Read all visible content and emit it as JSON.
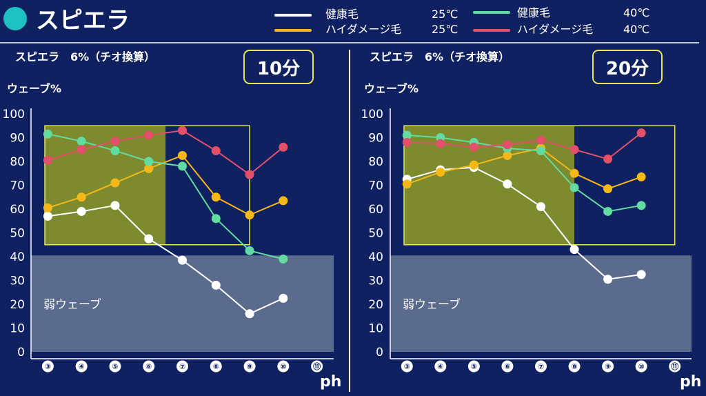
{
  "header": {
    "title": "スピエラ"
  },
  "legend": [
    {
      "name": "健康毛",
      "temp": "25℃",
      "color": "#ffffff"
    },
    {
      "name": "ハイダメージ毛",
      "temp": "25℃",
      "color": "#f5b817"
    },
    {
      "name": "健康毛",
      "temp": "40℃",
      "color": "#62dba0"
    },
    {
      "name": "ハイダメージ毛",
      "temp": "40℃",
      "color": "#e2506a"
    }
  ],
  "colors": {
    "background": "#0f2160",
    "optimal_zone_border": "#e6e85a",
    "optimal_zone_fill": "#7d8a2e",
    "weak_zone_fill": "#5a6b8e"
  },
  "chart_data": [
    {
      "type": "line",
      "title": "10分",
      "subtitle": "スピエラ　6%（チオ換算）",
      "ylabel": "ウェーブ%",
      "xlabel": "ph",
      "x_tick_labels": [
        "③",
        "④",
        "⑤",
        "⑥",
        "⑦",
        "⑧",
        "⑨",
        "⑩",
        "⑪"
      ],
      "x": [
        3,
        4,
        5,
        6,
        7,
        8,
        9,
        10
      ],
      "xlim": [
        2.5,
        11.5
      ],
      "ylim": [
        0,
        100
      ],
      "yticks": [
        0,
        10,
        20,
        30,
        40,
        50,
        60,
        70,
        80,
        90,
        100
      ],
      "grid": false,
      "series": [
        {
          "name": "健康毛 25℃",
          "color": "#ffffff",
          "values": [
            57,
            59,
            61.5,
            47.5,
            38.5,
            28,
            16,
            22.5
          ]
        },
        {
          "name": "ハイダメージ毛 25℃",
          "color": "#f5b817",
          "values": [
            60.5,
            65,
            71,
            77,
            82.5,
            65,
            57.5,
            63.5
          ]
        },
        {
          "name": "健康毛 40℃",
          "color": "#62dba0",
          "values": [
            91.5,
            88.5,
            84.5,
            80,
            78,
            56,
            42.5,
            39
          ]
        },
        {
          "name": "ハイダメージ毛 40℃",
          "color": "#e2506a",
          "values": [
            80.5,
            85,
            88.5,
            91,
            93,
            84.5,
            74.5,
            86
          ]
        }
      ],
      "optimal_zone": {
        "x": [
          2.5,
          9
        ],
        "y": [
          45,
          95
        ]
      },
      "optimal_zone_filled": {
        "x": [
          2.5,
          6.5
        ],
        "y": [
          45,
          95
        ]
      },
      "weak_zone": {
        "x": [
          2.5,
          11.5
        ],
        "y": [
          0,
          40.5
        ],
        "label": "弱ウェーブ"
      }
    },
    {
      "type": "line",
      "title": "20分",
      "subtitle": "スピエラ　6%（チオ換算）",
      "ylabel": "ウェーブ%",
      "xlabel": "ph",
      "x_tick_labels": [
        "③",
        "④",
        "⑤",
        "⑥",
        "⑦",
        "⑧",
        "⑨",
        "⑩",
        "⑪"
      ],
      "x": [
        3,
        4,
        5,
        6,
        7,
        8,
        9,
        10
      ],
      "xlim": [
        2.5,
        11.5
      ],
      "ylim": [
        0,
        100
      ],
      "yticks": [
        0,
        10,
        20,
        30,
        40,
        50,
        60,
        70,
        80,
        90,
        100
      ],
      "grid": false,
      "series": [
        {
          "name": "健康毛 25℃",
          "color": "#ffffff",
          "values": [
            72.5,
            76.5,
            77.5,
            70.5,
            61,
            43,
            30.5,
            32.5
          ]
        },
        {
          "name": "ハイダメージ毛 25℃",
          "color": "#f5b817",
          "values": [
            70.5,
            75.5,
            78.5,
            82.5,
            85.5,
            75,
            68.5,
            73.5
          ]
        },
        {
          "name": "健康毛 40℃",
          "color": "#62dba0",
          "values": [
            91,
            90,
            88,
            85.5,
            84.5,
            69,
            59,
            61.5
          ]
        },
        {
          "name": "ハイダメージ毛 40℃",
          "color": "#e2506a",
          "values": [
            88,
            87.5,
            86,
            87,
            89,
            85,
            81,
            92
          ]
        }
      ],
      "optimal_zone": {
        "x": [
          2.5,
          11
        ],
        "y": [
          45,
          95
        ]
      },
      "optimal_zone_filled": {
        "x": [
          2.5,
          8
        ],
        "y": [
          45,
          95
        ]
      },
      "weak_zone": {
        "x": [
          2.5,
          11.5
        ],
        "y": [
          0,
          40.5
        ],
        "label": "弱ウェーブ"
      }
    }
  ]
}
